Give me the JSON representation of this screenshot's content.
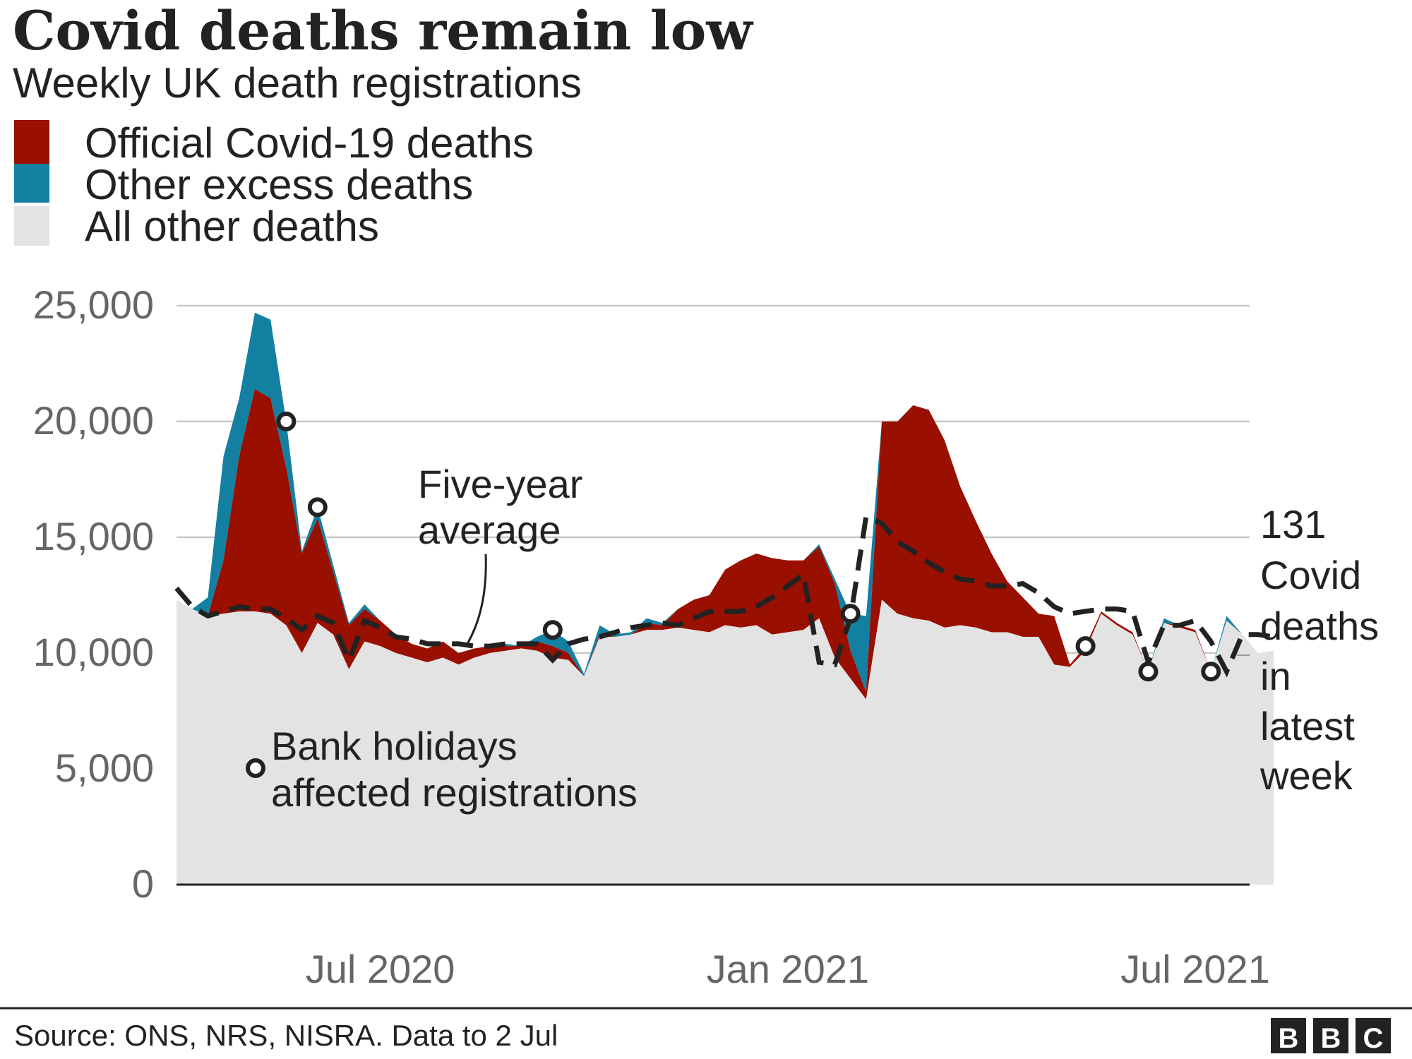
{
  "title": "Covid deaths remain low",
  "subtitle": "Weekly UK death registrations",
  "legend": [
    {
      "label": "Official Covid-19 deaths",
      "color": "#990f00"
    },
    {
      "label": "Other excess deaths",
      "color": "#1380a1"
    },
    {
      "label": "All other deaths",
      "color": "#e3e3e3"
    }
  ],
  "annotations": {
    "five_year_average": [
      "Five-year",
      "average"
    ],
    "bank_holidays": [
      "Bank holidays",
      "affected registrations"
    ],
    "latest": [
      "131",
      "Covid",
      "deaths",
      "in",
      "latest",
      "week"
    ]
  },
  "source": "Source: ONS, NRS, NISRA. Data to 2 Jul",
  "brand": "BBC",
  "colors": {
    "covid": "#990f00",
    "other_excess": "#1380a1",
    "all_other": "#e3e3e3",
    "average_line": "#222222"
  },
  "chart_data": {
    "type": "area",
    "stacked": true,
    "x_axis": {
      "ticks": [
        "Jul 2020",
        "Jan 2021",
        "Jul 2021"
      ],
      "tick_weeks": [
        13,
        39,
        65
      ]
    },
    "y_axis": {
      "ticks": [
        "0",
        "5,000",
        "10,000",
        "15,000",
        "20,000",
        "25,000"
      ],
      "tick_values": [
        0,
        5000,
        10000,
        15000,
        20000,
        25000
      ],
      "range": [
        0,
        25000
      ]
    },
    "grid": true,
    "legend_position": "top-left",
    "week_start": "2020-03-27",
    "total": [
      12300,
      11900,
      12400,
      18500,
      21000,
      24700,
      24400,
      20000,
      14400,
      16300,
      13800,
      11300,
      12100,
      11400,
      10800,
      10400,
      10200,
      10500,
      10000,
      10200,
      10300,
      10400,
      10300,
      10700,
      11000,
      10500,
      9100,
      11200,
      10800,
      10900,
      11500,
      11300,
      11900,
      12300,
      12500,
      13600,
      14000,
      14300,
      14100,
      14000,
      14000,
      14700,
      13200,
      11700,
      11600,
      20000,
      20000,
      20700,
      20500,
      19200,
      17200,
      15700,
      14300,
      13100,
      12400,
      11700,
      11600,
      9500,
      10300,
      11800,
      11300,
      10900,
      9200,
      11500,
      11200,
      11000,
      9200,
      11600,
      10800,
      10000,
      10100
    ],
    "covid_top": [
      12300,
      11900,
      11600,
      14000,
      18500,
      21400,
      21000,
      18000,
      14300,
      15800,
      13500,
      11200,
      11900,
      11400,
      10800,
      10400,
      10200,
      10500,
      10000,
      10200,
      10300,
      10300,
      10300,
      10500,
      10300,
      10000,
      9000,
      10800,
      10700,
      10800,
      11300,
      11200,
      11900,
      12300,
      12500,
      13600,
      14000,
      14300,
      14100,
      14000,
      14000,
      14600,
      13000,
      10100,
      8300,
      20000,
      20000,
      20700,
      20500,
      19200,
      17200,
      15700,
      14300,
      13100,
      12400,
      11700,
      11600,
      9500,
      10300,
      11800,
      11300,
      10900,
      9200,
      11300,
      11200,
      11000,
      9200,
      11400,
      10800,
      10000,
      10100
    ],
    "all_other": [
      12300,
      11900,
      11600,
      11700,
      11800,
      11800,
      11700,
      11200,
      10000,
      11300,
      10800,
      9300,
      10500,
      10300,
      10000,
      9800,
      9600,
      9800,
      9500,
      9800,
      10000,
      10100,
      10200,
      10100,
      9800,
      9700,
      9000,
      10700,
      10700,
      10800,
      11000,
      11000,
      11100,
      11000,
      10900,
      11200,
      11100,
      11200,
      10800,
      10900,
      11000,
      11500,
      9800,
      8900,
      8000,
      12300,
      11700,
      11500,
      11400,
      11100,
      11200,
      11100,
      10900,
      10900,
      10700,
      10700,
      9500,
      9400,
      10100,
      11700,
      11200,
      10800,
      9200,
      11300,
      11100,
      10900,
      9200,
      11400,
      10800,
      10000,
      10100
    ],
    "five_year_average": [
      12800,
      12000,
      11600,
      11800,
      12000,
      11900,
      11900,
      11500,
      11000,
      11600,
      11300,
      9700,
      11400,
      11100,
      10700,
      10600,
      10400,
      10400,
      10400,
      10300,
      10300,
      10400,
      10400,
      10400,
      9700,
      10400,
      10600,
      10700,
      10900,
      11100,
      11200,
      11300,
      11200,
      11500,
      11800,
      11800,
      11800,
      12000,
      12400,
      12900,
      13400,
      9600,
      9500,
      11500,
      15900,
      15600,
      14800,
      14400,
      13900,
      13500,
      13200,
      13100,
      12900,
      12900,
      13000,
      12600,
      12000,
      11700,
      11800,
      11900,
      11900,
      11800,
      9600,
      11200,
      11200,
      11400,
      10500,
      9200,
      10800,
      10800,
      10700
    ],
    "bank_holiday_weeks": [
      7,
      9,
      24,
      43,
      58,
      62,
      66
    ]
  }
}
